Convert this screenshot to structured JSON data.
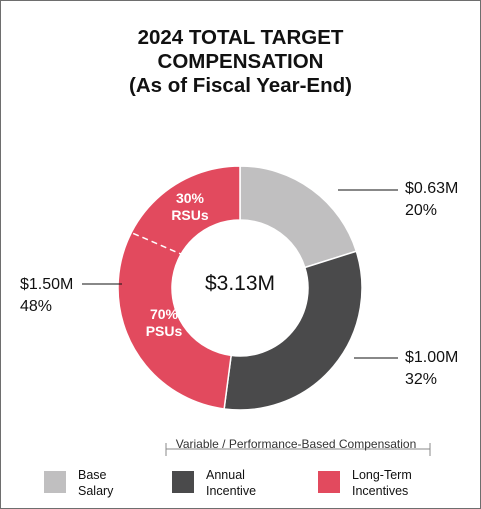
{
  "title": {
    "line1": "2024 TOTAL TARGET",
    "line2": "COMPENSATION",
    "line3": "(As of Fiscal Year-End)"
  },
  "center_label": "$3.13M",
  "colors": {
    "base_salary": "#c0bfc0",
    "annual_incentive": "#4a4a4b",
    "long_term_incentives": "#e24a5e"
  },
  "annotations": {
    "base": {
      "amount": "$0.63M",
      "pct": "20%"
    },
    "annual": {
      "amount": "$1.00M",
      "pct": "32%"
    },
    "ltip": {
      "amount": "$1.50M",
      "pct": "48%"
    }
  },
  "inner_labels": {
    "rsu_pct": "30%",
    "rsu_name": "RSUs",
    "psu_pct": "70%",
    "psu_name": "PSUs"
  },
  "bracket_label": "Variable / Performance-Based Compensation",
  "legend": [
    {
      "line1": "Base",
      "line2": "Salary"
    },
    {
      "line1": "Annual",
      "line2": "Incentive"
    },
    {
      "line1": "Long-Term",
      "line2": "Incentives"
    }
  ],
  "chart_data": {
    "type": "pie",
    "title": "2024 TOTAL TARGET COMPENSATION (As of Fiscal Year-End)",
    "total": "$3.13M",
    "categories": [
      "Base Salary",
      "Annual Incentive",
      "Long-Term Incentives"
    ],
    "values": [
      0.63,
      1.0,
      1.5
    ],
    "percentages": [
      20,
      32,
      48
    ],
    "sub_split": {
      "category": "Long-Term Incentives",
      "parts": [
        {
          "name": "RSUs",
          "pct": 30
        },
        {
          "name": "PSUs",
          "pct": 70
        }
      ]
    },
    "legend_position": "bottom"
  }
}
